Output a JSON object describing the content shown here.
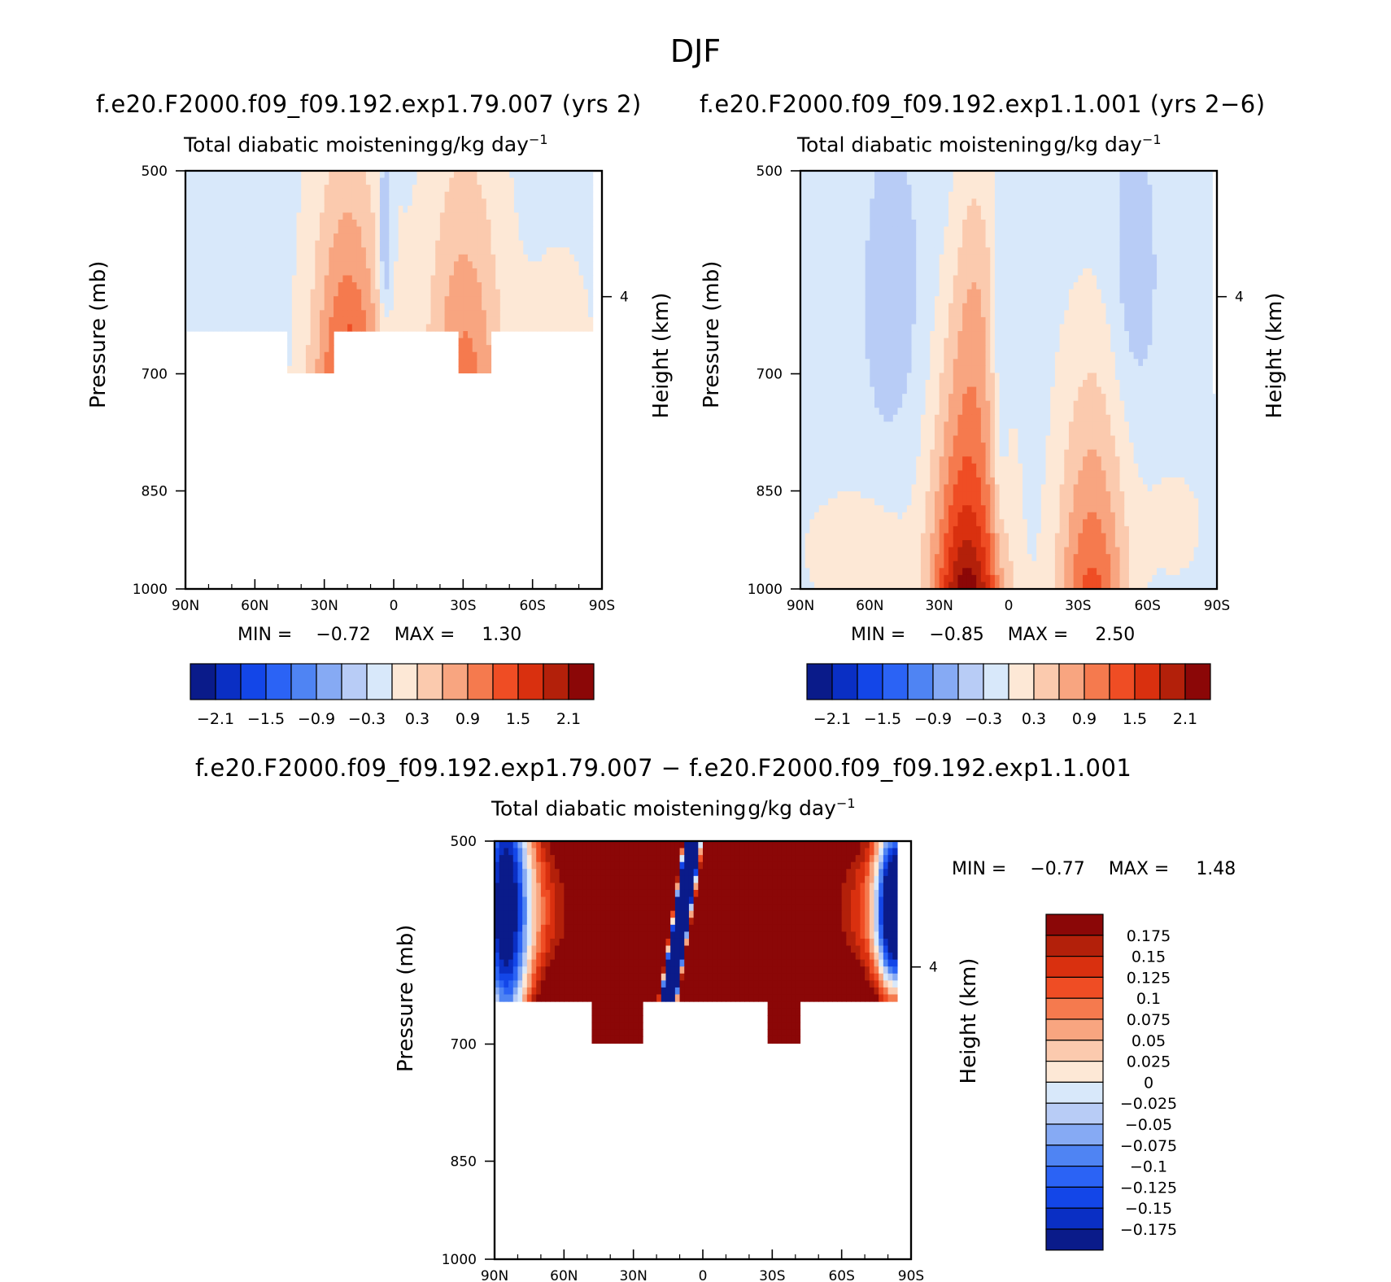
{
  "figure_title": "DJF",
  "difference_title": "f.e20.F2000.f09_f09.192.exp1.79.007 − f.e20.F2000.f09_f09.192.exp1.1.001",
  "abs_colors": [
    "#0a1b8a",
    "#0a2fc4",
    "#1346e8",
    "#2b63f5",
    "#4f84f3",
    "#86aaf4",
    "#b8ccf6",
    "#d8e8fa",
    "#fde8d6",
    "#fbcaae",
    "#f8a580",
    "#f57a4e",
    "#ef4d24",
    "#d9300f",
    "#b3200a",
    "#8b0707"
  ],
  "abs_ticks": [
    "−2.1",
    "−1.5",
    "−0.9",
    "−0.3",
    "0.3",
    "0.9",
    "1.5",
    "2.1"
  ],
  "diff_colors": [
    "#0a1b8a",
    "#0a2fc4",
    "#1346e8",
    "#2b63f5",
    "#4f84f3",
    "#86aaf4",
    "#b8ccf6",
    "#d8e8fa",
    "#fde8d6",
    "#fbcaae",
    "#f8a580",
    "#f57a4e",
    "#ef4d24",
    "#d9300f",
    "#b3200a",
    "#8b0707"
  ],
  "diff_ticks": [
    "0.175",
    "0.15",
    "0.125",
    "0.1",
    "0.075",
    "0.05",
    "0.025",
    "0",
    "−0.025",
    "−0.05",
    "−0.075",
    "−0.1",
    "−0.125",
    "−0.15",
    "−0.175"
  ],
  "diff_stats": {
    "min_label": "MIN =",
    "min": "−0.77",
    "max_label": "MAX =",
    "max": "1.48"
  },
  "chart_data": [
    {
      "type": "heatmap",
      "case_title": "f.e20.F2000.f09_f09.192.exp1.79.007 (yrs 2)",
      "title": "Total diabatic moistening",
      "units": "g/kg day",
      "units_exp": "−1",
      "xlabel": "",
      "ylabel": "Pressure (mb)",
      "y2label": "Height (km)",
      "x_ticks": [
        "90N",
        "60N",
        "30N",
        "0",
        "30S",
        "60S",
        "90S"
      ],
      "y_ticks": [
        "500",
        "700",
        "850",
        "1000"
      ],
      "y2_ticks": [
        "4"
      ],
      "ylim": [
        1000,
        500
      ],
      "min_label": "MIN =",
      "min": "−0.72",
      "max_label": "MAX =",
      "max": "1.30",
      "levels": [
        -2.1,
        -1.8,
        -1.5,
        -1.2,
        -0.9,
        -0.6,
        -0.3,
        0,
        0.3,
        0.6,
        0.9,
        1.2,
        1.5,
        1.8,
        2.1
      ]
    },
    {
      "type": "heatmap",
      "case_title": "f.e20.F2000.f09_f09.192.exp1.1.001 (yrs 2−6)",
      "title": "Total diabatic moistening",
      "units": "g/kg day",
      "units_exp": "−1",
      "xlabel": "",
      "ylabel": "Pressure (mb)",
      "y2label": "Height (km)",
      "x_ticks": [
        "90N",
        "60N",
        "30N",
        "0",
        "30S",
        "60S",
        "90S"
      ],
      "y_ticks": [
        "500",
        "700",
        "850",
        "1000"
      ],
      "y2_ticks": [
        "4"
      ],
      "ylim": [
        1000,
        500
      ],
      "min_label": "MIN =",
      "min": "−0.85",
      "max_label": "MAX =",
      "max": "2.50",
      "levels": [
        -2.1,
        -1.8,
        -1.5,
        -1.2,
        -0.9,
        -0.6,
        -0.3,
        0,
        0.3,
        0.6,
        0.9,
        1.2,
        1.5,
        1.8,
        2.1
      ]
    },
    {
      "type": "heatmap",
      "title": "Total diabatic moistening",
      "units": "g/kg day",
      "units_exp": "−1",
      "xlabel": "",
      "ylabel": "Pressure (mb)",
      "y2label": "Height (km)",
      "x_ticks": [
        "90N",
        "60N",
        "30N",
        "0",
        "30S",
        "60S",
        "90S"
      ],
      "y_ticks": [
        "500",
        "700",
        "850",
        "1000"
      ],
      "y2_ticks": [
        "4"
      ],
      "ylim": [
        1000,
        500
      ],
      "levels": [
        -0.175,
        -0.15,
        -0.125,
        -0.1,
        -0.075,
        -0.05,
        -0.025,
        0,
        0.025,
        0.05,
        0.075,
        0.1,
        0.125,
        0.15,
        0.175
      ]
    }
  ]
}
